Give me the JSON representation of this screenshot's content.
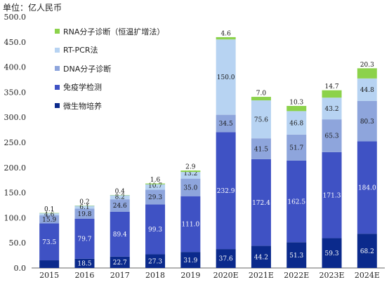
{
  "unit_label": "单位：亿人民币",
  "chart_data": {
    "type": "bar",
    "stacked": true,
    "categories": [
      "2015",
      "2016",
      "2017",
      "2018",
      "2019",
      "2020E",
      "2021E",
      "2022E",
      "2023E",
      "2024E"
    ],
    "series": [
      {
        "name": "微生物培养",
        "color": "#0B2A8C",
        "values": [
          15.3,
          18.5,
          22.7,
          27.3,
          31.9,
          37.6,
          44.2,
          51.3,
          59.3,
          68.2
        ]
      },
      {
        "name": "免疫学检测",
        "color": "#3F52C4",
        "values": [
          73.5,
          79.7,
          89.4,
          99.3,
          111.0,
          232.9,
          172.4,
          162.5,
          171.3,
          184.0
        ]
      },
      {
        "name": "DNA分子诊断",
        "color": "#8EA5DC",
        "values": [
          15.9,
          19.8,
          24.6,
          29.3,
          35.0,
          34.5,
          41.5,
          51.7,
          65.3,
          80.3
        ]
      },
      {
        "name": "RT-PCR法",
        "color": "#B7D3F2",
        "values": [
          4.6,
          6.1,
          8.2,
          10.7,
          13.2,
          150.0,
          75.6,
          46.8,
          43.2,
          44.8
        ]
      },
      {
        "name": "RNA分子诊断（恒温扩增法）",
        "color": "#8CD24B",
        "values": [
          0.1,
          0.2,
          0.4,
          1.6,
          2.9,
          4.6,
          7.0,
          10.3,
          14.7,
          20.3
        ]
      }
    ],
    "legend_order": [
      "RNA分子诊断（恒温扩增法）",
      "RT-PCR法",
      "DNA分子诊断",
      "免疫学检测",
      "微生物培养"
    ],
    "ylim": [
      0,
      500
    ],
    "yticks": [
      "0.0",
      "50.0",
      "100.0",
      "150.0",
      "200.0",
      "250.0",
      "300.0",
      "350.0",
      "400.0",
      "450.0",
      "500.0"
    ],
    "legend_position": "top-left",
    "grid": false
  }
}
